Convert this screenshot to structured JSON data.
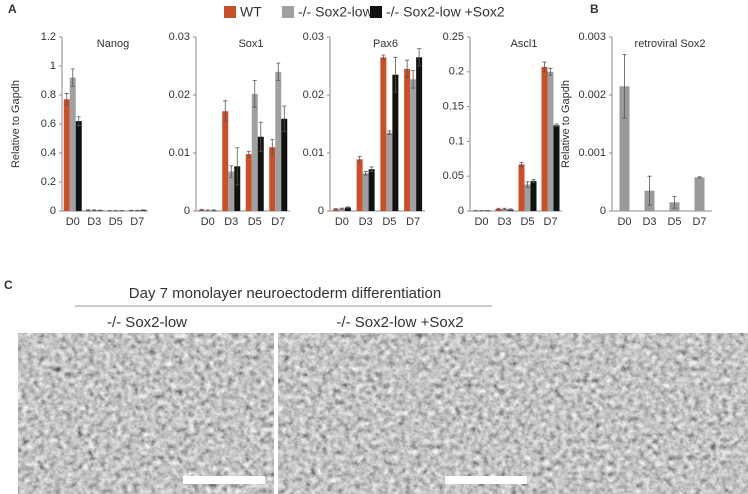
{
  "chart_data": [
    {
      "type": "bar",
      "title": "Nanog",
      "ylabel": "Relative to Gapdh",
      "categories": [
        "D0",
        "D3",
        "D5",
        "D7"
      ],
      "series": [
        {
          "name": "WT",
          "color": "#c8502a",
          "values": [
            0.77,
            0.005,
            0.002,
            0.003
          ],
          "errors": [
            0.04,
            0.003,
            0.001,
            0.002
          ]
        },
        {
          "name": "-/- Sox2-low",
          "color": "#a0a0a0",
          "values": [
            0.92,
            0.005,
            0.002,
            0.003
          ],
          "errors": [
            0.06,
            0.003,
            0.001,
            0.002
          ]
        },
        {
          "name": "-/- Sox2-low +Sox2",
          "color": "#111111",
          "values": [
            0.62,
            0.004,
            0.002,
            0.006
          ],
          "errors": [
            0.03,
            0.002,
            0.001,
            0.002
          ]
        }
      ],
      "ylim": [
        0,
        1.2
      ],
      "yticks": [
        0,
        0.2,
        0.4,
        0.6,
        0.8,
        1,
        1.2
      ]
    },
    {
      "type": "bar",
      "title": "Sox1",
      "categories": [
        "D0",
        "D3",
        "D5",
        "D7"
      ],
      "series": [
        {
          "color": "#c8502a",
          "values": [
            0.0002,
            0.0172,
            0.0098,
            0.011
          ],
          "errors": [
            0.0001,
            0.0018,
            0.0005,
            0.0013
          ]
        },
        {
          "color": "#a0a0a0",
          "values": [
            0.0001,
            0.0068,
            0.0202,
            0.024
          ],
          "errors": [
            0.0001,
            0.001,
            0.0023,
            0.0015
          ]
        },
        {
          "color": "#111111",
          "values": [
            0.0001,
            0.0077,
            0.0128,
            0.0159
          ],
          "errors": [
            0.0001,
            0.0032,
            0.0025,
            0.0022
          ]
        }
      ],
      "ylim": [
        0,
        0.03
      ],
      "yticks": [
        0,
        0.01,
        0.02,
        0.03
      ]
    },
    {
      "type": "bar",
      "title": "Pax6",
      "categories": [
        "D0",
        "D3",
        "D5",
        "D7"
      ],
      "series": [
        {
          "color": "#c8502a",
          "values": [
            0.0003,
            0.0089,
            0.0265,
            0.0245
          ],
          "errors": [
            0.0001,
            0.0005,
            0.0004,
            0.0015
          ]
        },
        {
          "color": "#a0a0a0",
          "values": [
            0.0004,
            0.0065,
            0.0135,
            0.0227
          ],
          "errors": [
            0.0001,
            0.0003,
            0.0003,
            0.0015
          ]
        },
        {
          "color": "#111111",
          "values": [
            0.0006,
            0.0072,
            0.0235,
            0.0265
          ],
          "errors": [
            0.0001,
            0.0004,
            0.003,
            0.0015
          ]
        }
      ],
      "ylim": [
        0,
        0.03
      ],
      "yticks": [
        0,
        0.01,
        0.02,
        0.03
      ]
    },
    {
      "type": "bar",
      "title": "Ascl1",
      "categories": [
        "D0",
        "D3",
        "D5",
        "D7"
      ],
      "series": [
        {
          "color": "#c8502a",
          "values": [
            0.0005,
            0.003,
            0.067,
            0.207
          ],
          "errors": [
            0.0002,
            0.001,
            0.003,
            0.007
          ]
        },
        {
          "color": "#a0a0a0",
          "values": [
            0.0005,
            0.003,
            0.038,
            0.2
          ],
          "errors": [
            0.0002,
            0.001,
            0.004,
            0.005
          ]
        },
        {
          "color": "#111111",
          "values": [
            0.0005,
            0.002,
            0.043,
            0.123
          ],
          "errors": [
            0.0002,
            0.001,
            0.002,
            0.002
          ]
        }
      ],
      "ylim": [
        0,
        0.25
      ],
      "yticks": [
        0,
        0.05,
        0.1,
        0.15,
        0.2,
        0.25
      ]
    },
    {
      "type": "bar",
      "title": "retroviral Sox2",
      "ylabel": "Relative to Gapdh",
      "categories": [
        "D0",
        "D3",
        "D5",
        "D7"
      ],
      "series": [
        {
          "color": "#9a9a9a",
          "values": [
            0.00215,
            0.00035,
            0.00015,
            0.00058
          ],
          "errors": [
            0.00055,
            0.00025,
            0.0001,
            1e-05
          ]
        }
      ],
      "ylim": [
        0,
        0.003
      ],
      "yticks": [
        0,
        0.001,
        0.002,
        0.003
      ]
    }
  ],
  "panel_labels": [
    "A",
    "B",
    "C"
  ],
  "panel_c": {
    "title": "Day 7 monolayer neuroectoderm differentiation",
    "images": [
      "-/- Sox2-low",
      "-/- Sox2-low +Sox2"
    ]
  }
}
